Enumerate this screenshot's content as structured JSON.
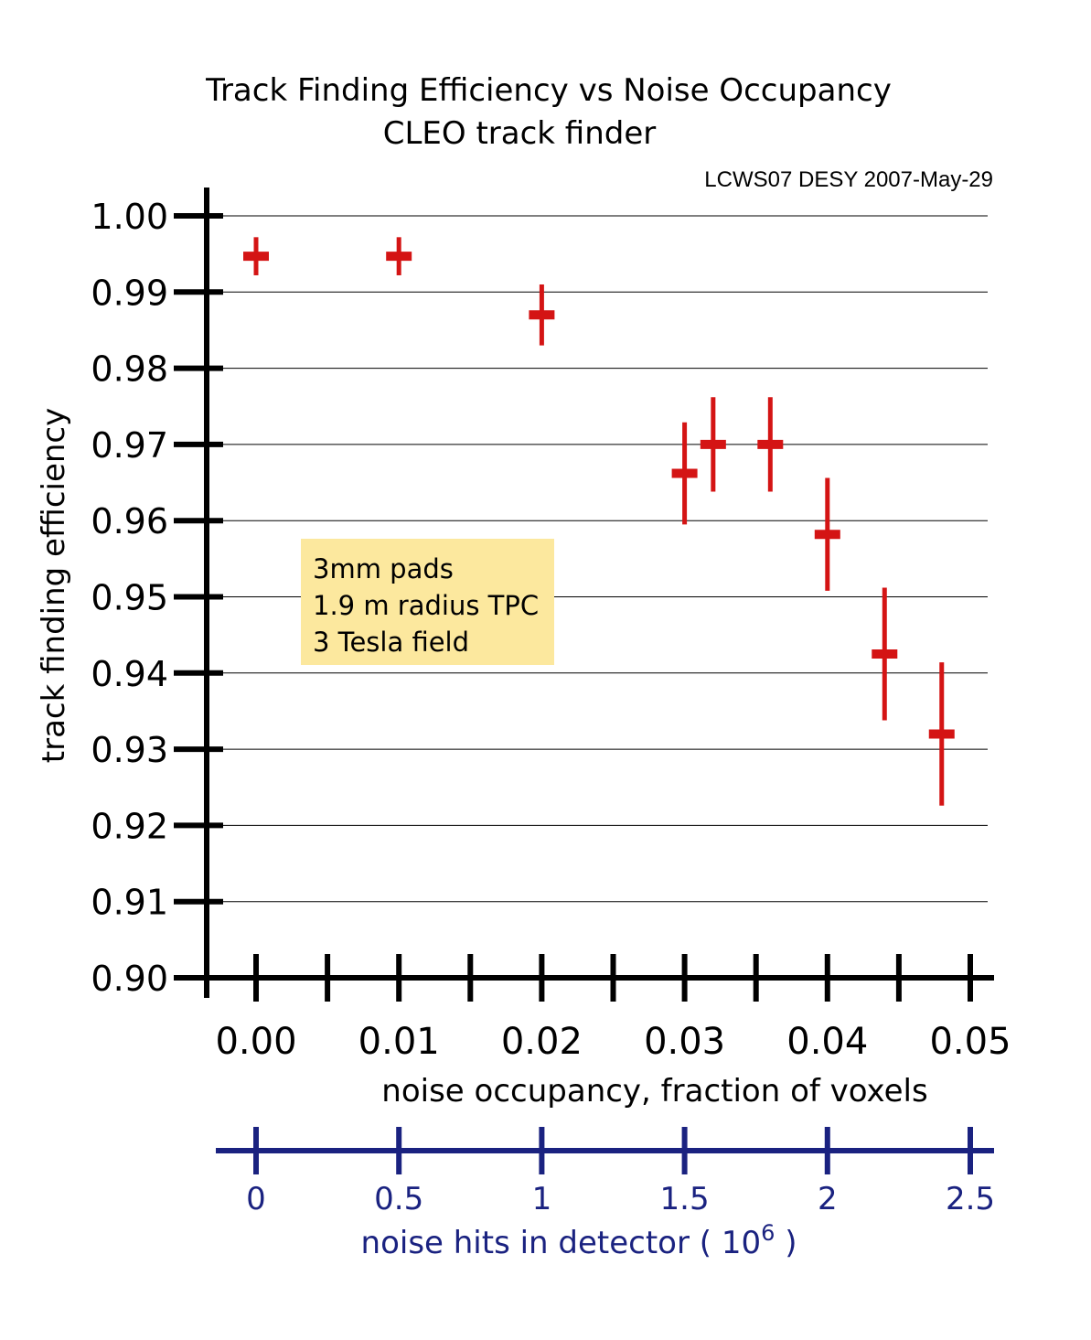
{
  "chart_data": {
    "type": "scatter",
    "title": "Track Finding Efficiency vs Noise Occupancy",
    "subtitle": "CLEO track finder",
    "note": "LCWS07 DESY 2007-May-29",
    "ylabel": "track finding efficiency",
    "xlabel": "noise occupancy, fraction of voxels",
    "ylim": [
      0.9,
      1.0
    ],
    "xlim": [
      -0.0037,
      0.0517
    ],
    "ytick_labels": [
      "1.00",
      "0.99",
      "0.98",
      "0.97",
      "0.96",
      "0.95",
      "0.94",
      "0.93",
      "0.92",
      "0.91",
      "0.90"
    ],
    "xtick_labels": [
      "0.00",
      "0.01",
      "0.02",
      "0.03",
      "0.04",
      "0.05"
    ],
    "grid": "horizontal",
    "color": "#d41414",
    "points": [
      {
        "x": 0.0,
        "y": 0.9947,
        "yerr": 0.0025
      },
      {
        "x": 0.01,
        "y": 0.9947,
        "yerr": 0.0025
      },
      {
        "x": 0.02,
        "y": 0.987,
        "yerr": 0.004
      },
      {
        "x": 0.03,
        "y": 0.9662,
        "yerr": 0.0067
      },
      {
        "x": 0.032,
        "y": 0.97,
        "yerr": 0.0062
      },
      {
        "x": 0.036,
        "y": 0.97,
        "yerr": 0.0062
      },
      {
        "x": 0.04,
        "y": 0.9582,
        "yerr": 0.0074
      },
      {
        "x": 0.044,
        "y": 0.9425,
        "yerr": 0.0087
      },
      {
        "x": 0.048,
        "y": 0.932,
        "yerr": 0.0094
      }
    ],
    "annotation": [
      "3mm pads",
      "1.9 m radius TPC",
      "3 Tesla field"
    ],
    "annotation_color": "#fce89e",
    "secondary_axis": {
      "label_prefix": "noise hits in detector ( 10",
      "label_exponent": "6",
      "label_suffix": " )",
      "tick_labels": [
        "0",
        "0.5",
        "1",
        "1.5",
        "2",
        "2.5"
      ],
      "color": "#1a2280"
    }
  }
}
